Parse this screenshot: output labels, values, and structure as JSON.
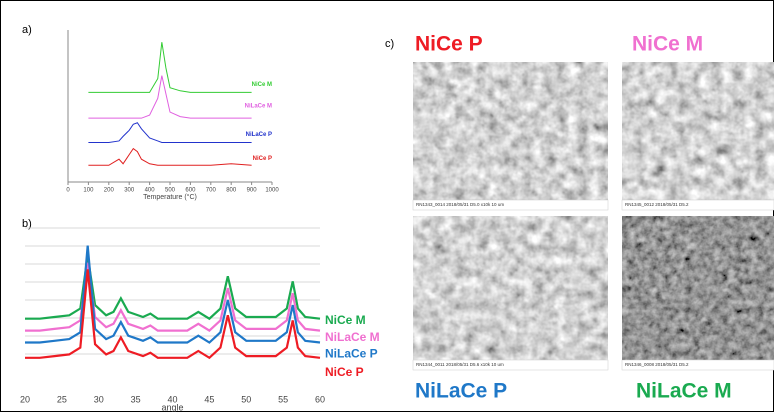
{
  "panel_labels": {
    "a": "a)",
    "b": "b)",
    "c": "c)"
  },
  "chart_data": [
    {
      "type": "line",
      "xlabel": "Temperature (°C)",
      "x": [
        100,
        150,
        200,
        250,
        270,
        300,
        320,
        340,
        360,
        400,
        440,
        460,
        480,
        500,
        550,
        600,
        700,
        800,
        900
      ],
      "xlim": [
        0,
        1000
      ],
      "xticks": [
        0,
        100,
        200,
        300,
        400,
        500,
        600,
        700,
        800,
        900,
        1000
      ],
      "ylim": [
        0,
        100
      ],
      "series": [
        {
          "name": "NiCe M",
          "color": "#33cc33",
          "values": [
            59,
            59,
            59,
            59,
            59,
            59,
            59,
            59,
            59,
            59,
            68,
            92,
            75,
            62,
            60,
            59,
            59,
            59,
            59
          ]
        },
        {
          "name": "NiLaCe M",
          "color": "#e060e0",
          "values": [
            42,
            42,
            42,
            42,
            42,
            42,
            42,
            42,
            42,
            44,
            55,
            70,
            58,
            46,
            43,
            42,
            42,
            42,
            42
          ]
        },
        {
          "name": "NiLaCe P",
          "color": "#2233cc",
          "values": [
            26,
            26,
            26,
            27,
            30,
            34,
            38,
            39,
            35,
            29,
            27,
            26,
            26,
            26,
            26,
            26,
            26,
            26,
            26
          ]
        },
        {
          "name": "NiCe P",
          "color": "#e02020",
          "values": [
            11,
            11,
            11,
            15,
            12,
            18,
            22,
            20,
            15,
            12,
            11,
            11,
            11,
            11,
            11,
            11,
            11,
            12,
            11
          ]
        }
      ]
    },
    {
      "type": "line",
      "xlabel": "angle",
      "x": [
        20,
        22,
        24,
        26,
        27.5,
        28.5,
        29.5,
        31,
        32,
        33,
        34,
        36,
        37,
        38,
        42,
        43.5,
        45,
        46.5,
        47.5,
        48.5,
        50,
        54,
        55.5,
        56.3,
        57,
        58,
        60
      ],
      "xlim": [
        20,
        60
      ],
      "xticks": [
        20,
        25,
        30,
        35,
        40,
        45,
        50,
        55,
        60
      ],
      "ylim": [
        0,
        100
      ],
      "series": [
        {
          "name": "NiCe M",
          "color": "#1aaa50",
          "values": [
            39,
            39,
            40,
            41,
            45,
            76,
            47,
            41,
            43,
            51,
            43,
            40,
            42,
            39,
            39,
            43,
            39,
            45,
            64,
            45,
            40,
            40,
            45,
            61,
            45,
            40,
            39
          ]
        },
        {
          "name": "NiLaCe M",
          "color": "#f070d0",
          "values": [
            32,
            32,
            33,
            34,
            38,
            72,
            40,
            34,
            36,
            44,
            36,
            33,
            35,
            32,
            32,
            36,
            32,
            38,
            57,
            38,
            33,
            33,
            38,
            54,
            38,
            33,
            32
          ]
        },
        {
          "name": "NiLaCe P",
          "color": "#1f78c8",
          "values": [
            25,
            25,
            26,
            27,
            31,
            82,
            33,
            27,
            29,
            37,
            29,
            26,
            28,
            25,
            25,
            29,
            25,
            31,
            50,
            31,
            26,
            26,
            31,
            47,
            31,
            26,
            25
          ]
        },
        {
          "name": "NiCe P",
          "color": "#ee1c24",
          "values": [
            16,
            16,
            17,
            18,
            22,
            68,
            24,
            18,
            20,
            28,
            20,
            17,
            19,
            16,
            16,
            20,
            16,
            22,
            41,
            22,
            17,
            17,
            22,
            38,
            22,
            17,
            16
          ]
        }
      ]
    }
  ],
  "micrographs": [
    {
      "label": "NiCe P",
      "color": "#ee1c24",
      "caption": "RN1343_0014      2018/05/31      D5.0  x10k   10 um"
    },
    {
      "label": "NiCe M",
      "color": "#f070d0",
      "caption": "RN1345_0012      2018/05/31      D5.2"
    },
    {
      "label": "NiLaCe P",
      "color": "#1f78c8",
      "caption": "RN1344_0011      2018/05/31      D5.6  x10k   10 um"
    },
    {
      "label": "NiLaCe M",
      "color": "#1aaa50",
      "caption": "RN1346_0008      2018/05/31      D5.2"
    }
  ]
}
